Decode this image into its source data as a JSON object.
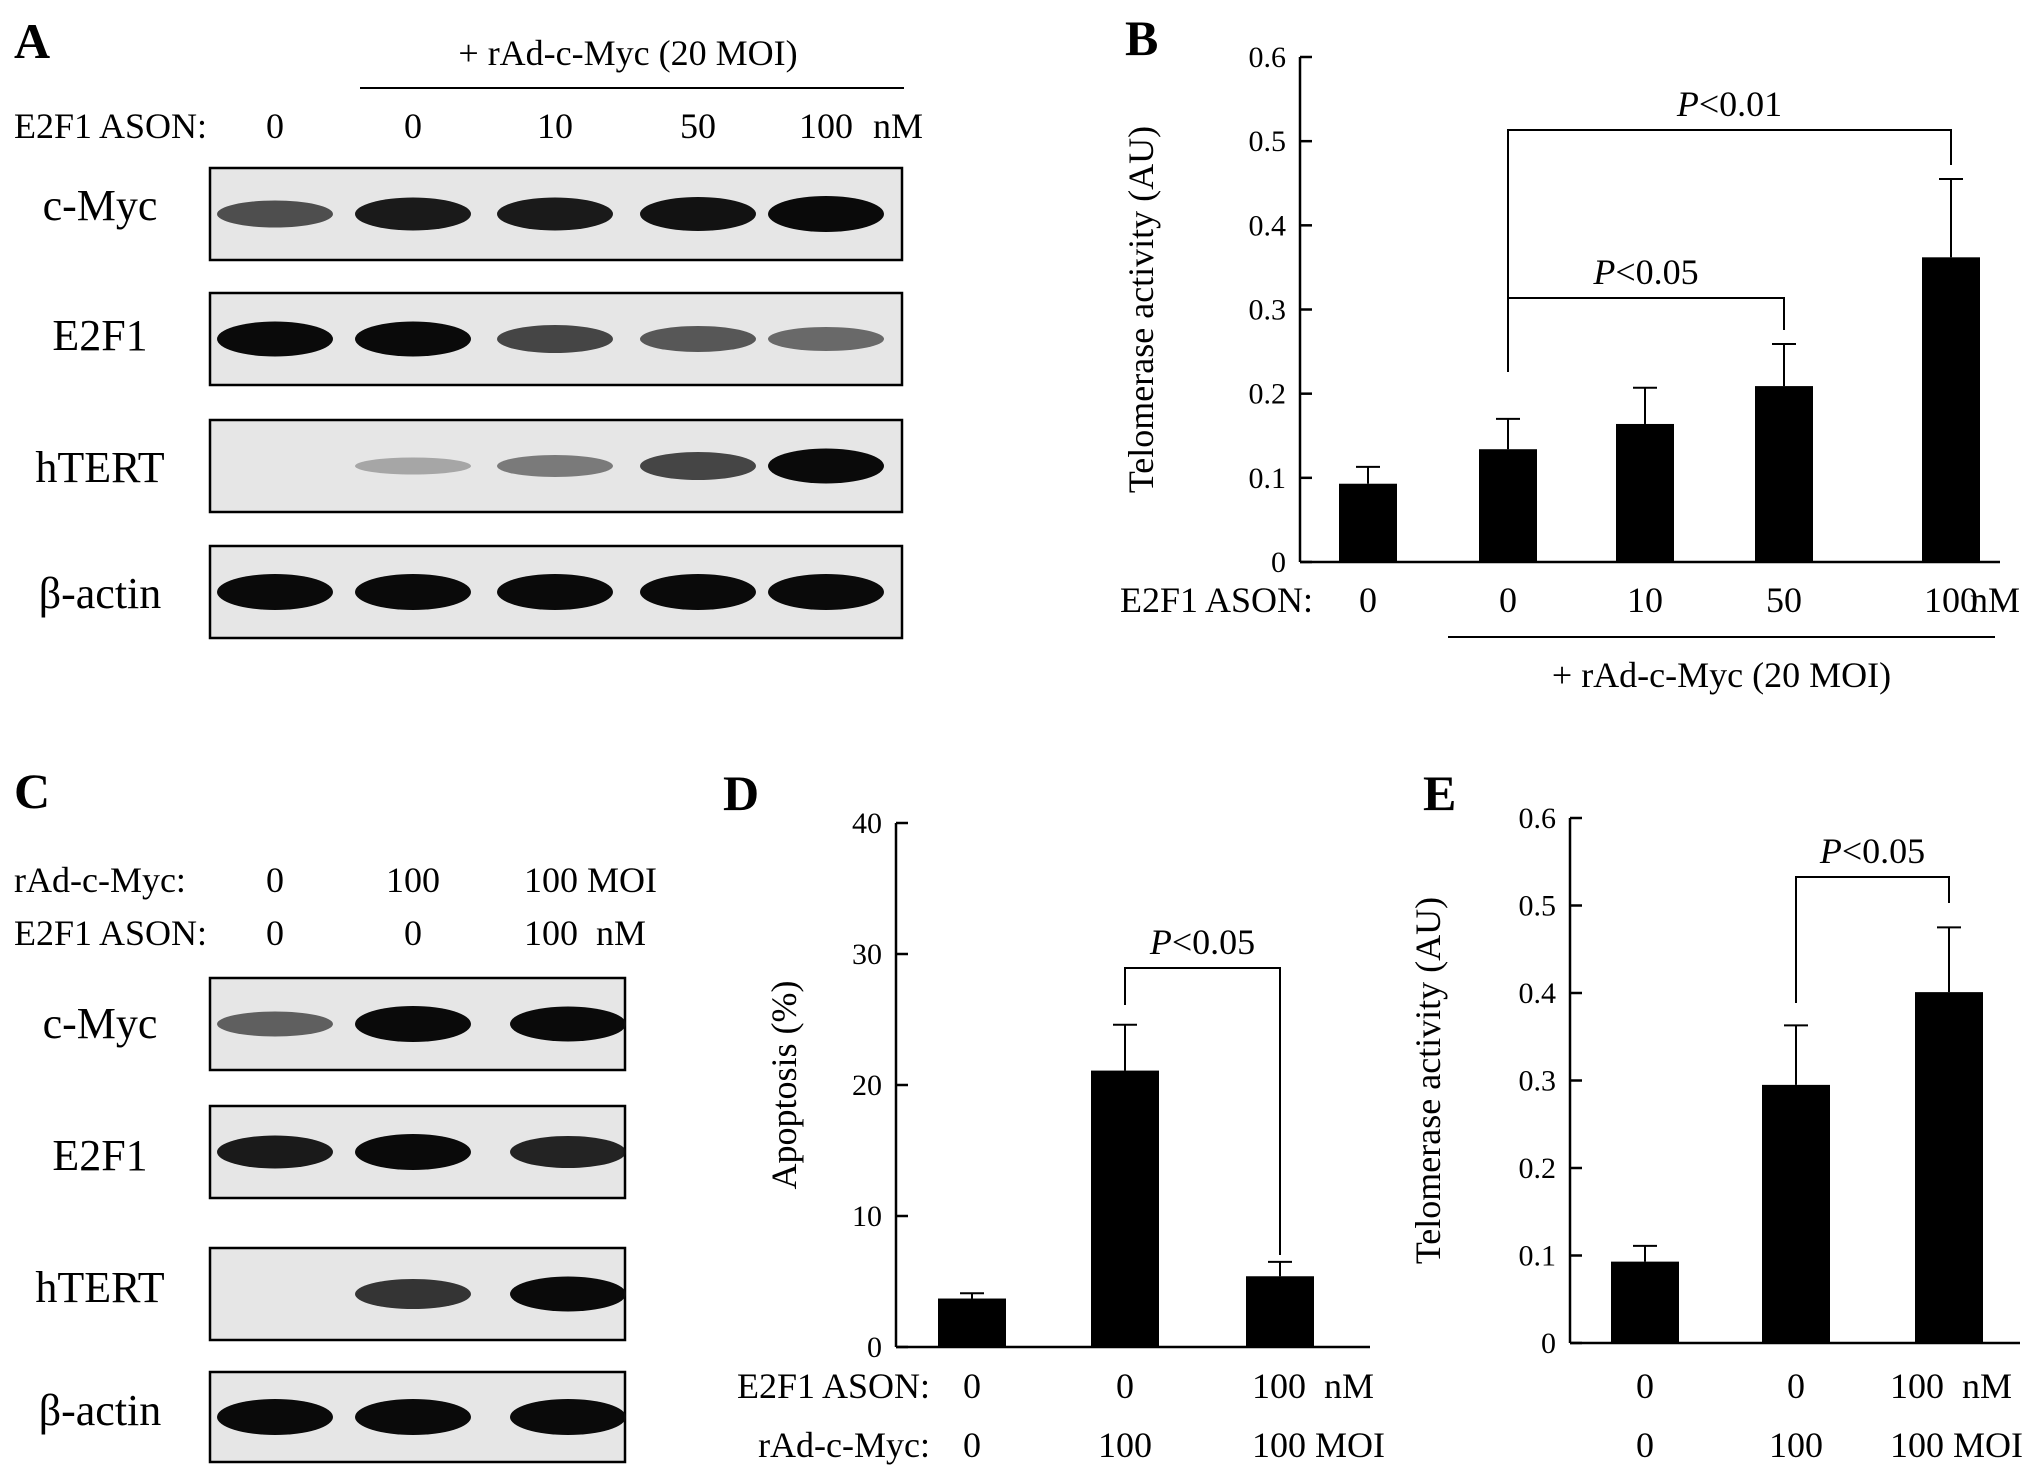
{
  "panels": {
    "A": {
      "letter": "A",
      "group_label": "+ rAd-c-Myc (20 MOI)",
      "row_label": "E2F1 ASON:",
      "lanes": [
        "0",
        "0",
        "10",
        "50",
        "100"
      ],
      "unit": "nM",
      "blots": [
        {
          "label": "c-Myc",
          "intensity": [
            0.55,
            0.85,
            0.85,
            0.9,
            1.0
          ]
        },
        {
          "label": "E2F1",
          "intensity": [
            0.95,
            0.95,
            0.6,
            0.5,
            0.4
          ]
        },
        {
          "label": "hTERT",
          "intensity": [
            0.0,
            0.05,
            0.3,
            0.6,
            0.95
          ]
        },
        {
          "label": "β-actin",
          "intensity": [
            1.0,
            1.0,
            1.0,
            1.0,
            1.0
          ]
        }
      ]
    },
    "B": {
      "letter": "B"
    },
    "C": {
      "letter": "C",
      "row1_label": "rAd-c-Myc:",
      "row1_values": [
        "0",
        "100",
        "100 MOI"
      ],
      "row2_label": "E2F1 ASON:",
      "row2_values": [
        "0",
        "0",
        "100  nM"
      ],
      "blots": [
        {
          "label": "c-Myc",
          "intensity": [
            0.45,
            1.0,
            0.95
          ]
        },
        {
          "label": "E2F1",
          "intensity": [
            0.85,
            1.0,
            0.8
          ]
        },
        {
          "label": "hTERT",
          "intensity": [
            0.0,
            0.7,
            0.95
          ]
        },
        {
          "label": "β-actin",
          "intensity": [
            1.0,
            1.0,
            1.0
          ]
        }
      ]
    },
    "D": {
      "letter": "D"
    },
    "E": {
      "letter": "E"
    }
  },
  "chart_data": [
    {
      "panel": "B",
      "type": "bar",
      "ylabel": "Telomerase activity (AU)",
      "ylim": [
        0,
        0.6
      ],
      "yticks": [
        "0",
        "0.1",
        "0.2",
        "0.3",
        "0.4",
        "0.5",
        "0.6"
      ],
      "row1_label": "E2F1 ASON:",
      "categories": [
        "0",
        "0",
        "10",
        "50",
        "100"
      ],
      "unit": "nM",
      "group_label": "+ rAd-c-Myc (20 MOI)",
      "values": [
        0.093,
        0.134,
        0.164,
        0.209,
        0.362
      ],
      "errors": [
        0.02,
        0.036,
        0.043,
        0.05,
        0.093
      ],
      "annotations": [
        {
          "text": "P<0.01",
          "from": 1,
          "to": 4
        },
        {
          "text": "P<0.05",
          "from": 1,
          "to": 3
        }
      ]
    },
    {
      "panel": "D",
      "type": "bar",
      "ylabel": "Apoptosis (%)",
      "ylim": [
        0,
        40
      ],
      "yticks": [
        "0",
        "10",
        "20",
        "30",
        "40"
      ],
      "row1_label": "E2F1 ASON:",
      "categories": [
        "0",
        "0",
        "100  nM"
      ],
      "row2_label": "rAd-c-Myc:",
      "row2": [
        "0",
        "100",
        "100 MOI"
      ],
      "values": [
        3.7,
        21.1,
        5.4
      ],
      "errors": [
        0.4,
        3.5,
        1.1
      ],
      "annotations": [
        {
          "text": "P<0.05",
          "from": 1,
          "to": 2
        }
      ]
    },
    {
      "panel": "E",
      "type": "bar",
      "ylabel": "Telomerase activity (AU)",
      "ylim": [
        0,
        0.6
      ],
      "yticks": [
        "0",
        "0.1",
        "0.2",
        "0.3",
        "0.4",
        "0.5",
        "0.6"
      ],
      "categories": [
        "0",
        "0",
        "100  nM"
      ],
      "row2": [
        "0",
        "100",
        "100 MOI"
      ],
      "values": [
        0.093,
        0.295,
        0.401
      ],
      "errors": [
        0.018,
        0.068,
        0.074
      ],
      "annotations": [
        {
          "text": "P<0.05",
          "from": 1,
          "to": 2
        }
      ]
    }
  ]
}
